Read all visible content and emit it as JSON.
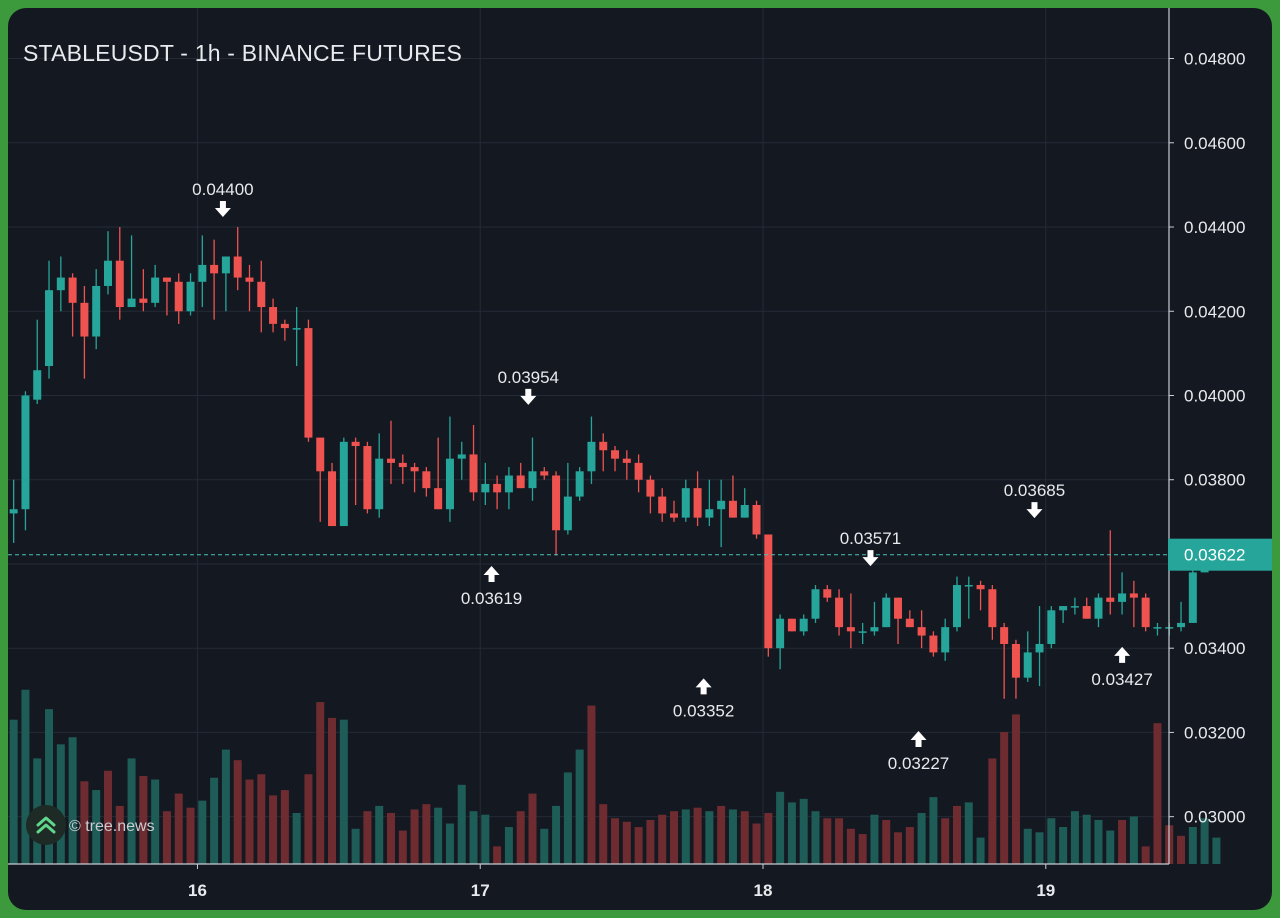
{
  "title": "STABLEUSDT - 1h - BINANCE FUTURES",
  "watermark": "© tree.news",
  "logo_icon": "double-chevron-up-icon",
  "colors": {
    "background": "#141821",
    "grid": "#252b36",
    "up": "#26a69a",
    "down": "#ef5350",
    "up_volume": "#1e5d57",
    "down_volume": "#6e2c31",
    "price_line": "#46c2b4",
    "frame": "#3c9a3c"
  },
  "chart_data": {
    "type": "candlestick",
    "interval": "1h",
    "x_ticks": [
      "16",
      "17",
      "18",
      "19"
    ],
    "y_ticks": [
      "0.04800",
      "0.04600",
      "0.04400",
      "0.04200",
      "0.04000",
      "0.03800",
      "0.03600",
      "0.03400",
      "0.03200",
      "0.03000"
    ],
    "ylim": [
      0.0289,
      0.0492
    ],
    "x_range": [
      15.33,
      19.8
    ],
    "grid": true,
    "last_price": "0.03622",
    "annotations": [
      {
        "label": "0.04400",
        "t": 16.09,
        "price": 0.044,
        "arrow": "down"
      },
      {
        "label": "0.03619",
        "t": 17.04,
        "price": 0.03619,
        "arrow": "up"
      },
      {
        "label": "0.03954",
        "t": 17.17,
        "price": 0.03954,
        "arrow": "down"
      },
      {
        "label": "0.03352",
        "t": 17.79,
        "price": 0.03352,
        "arrow": "up"
      },
      {
        "label": "0.03571",
        "t": 18.38,
        "price": 0.03571,
        "arrow": "down"
      },
      {
        "label": "0.03227",
        "t": 18.55,
        "price": 0.03227,
        "arrow": "up"
      },
      {
        "label": "0.03685",
        "t": 18.96,
        "price": 0.03685,
        "arrow": "down"
      },
      {
        "label": "0.03427",
        "t": 19.27,
        "price": 0.03427,
        "arrow": "up"
      }
    ],
    "start": 15.35,
    "step": 0.0417,
    "candles": [
      [
        0.0372,
        0.0373,
        0.0365,
        0.038
      ],
      [
        0.0373,
        0.04,
        0.0368,
        0.0401
      ],
      [
        0.0399,
        0.0406,
        0.0398,
        0.0418
      ],
      [
        0.0407,
        0.0425,
        0.0404,
        0.0432
      ],
      [
        0.0425,
        0.0428,
        0.042,
        0.0433
      ],
      [
        0.0428,
        0.0422,
        0.0414,
        0.0429
      ],
      [
        0.0422,
        0.0414,
        0.0404,
        0.0426
      ],
      [
        0.0414,
        0.0426,
        0.0411,
        0.043
      ],
      [
        0.0426,
        0.0432,
        0.0424,
        0.0439
      ],
      [
        0.0432,
        0.0421,
        0.0418,
        0.044
      ],
      [
        0.0421,
        0.0423,
        0.0421,
        0.0438
      ],
      [
        0.0423,
        0.0422,
        0.042,
        0.043
      ],
      [
        0.0422,
        0.0428,
        0.0421,
        0.0431
      ],
      [
        0.0428,
        0.0427,
        0.0419,
        0.0428
      ],
      [
        0.0427,
        0.042,
        0.0417,
        0.0429
      ],
      [
        0.042,
        0.0427,
        0.0419,
        0.0429
      ],
      [
        0.0427,
        0.0431,
        0.0421,
        0.0438
      ],
      [
        0.0431,
        0.0429,
        0.0418,
        0.0437
      ],
      [
        0.0429,
        0.0433,
        0.042,
        0.0433
      ],
      [
        0.0433,
        0.0428,
        0.0425,
        0.044
      ],
      [
        0.0428,
        0.0427,
        0.042,
        0.0431
      ],
      [
        0.0427,
        0.0421,
        0.0415,
        0.0432
      ],
      [
        0.0421,
        0.0417,
        0.0415,
        0.0423
      ],
      [
        0.0417,
        0.0416,
        0.0413,
        0.0418
      ],
      [
        0.0416,
        0.0416,
        0.0407,
        0.0421
      ],
      [
        0.0416,
        0.039,
        0.0389,
        0.0418
      ],
      [
        0.039,
        0.0382,
        0.037,
        0.039
      ],
      [
        0.0382,
        0.0369,
        0.0369,
        0.0384
      ],
      [
        0.0369,
        0.0389,
        0.0369,
        0.039
      ],
      [
        0.0389,
        0.0388,
        0.0374,
        0.039
      ],
      [
        0.0388,
        0.0373,
        0.0372,
        0.0389
      ],
      [
        0.0373,
        0.0385,
        0.0371,
        0.0391
      ],
      [
        0.0385,
        0.0384,
        0.0379,
        0.0394
      ],
      [
        0.0384,
        0.0383,
        0.0379,
        0.0386
      ],
      [
        0.0383,
        0.0382,
        0.0377,
        0.0384
      ],
      [
        0.0382,
        0.0378,
        0.0376,
        0.0383
      ],
      [
        0.0378,
        0.0373,
        0.0373,
        0.039
      ],
      [
        0.0373,
        0.0385,
        0.037,
        0.0395
      ],
      [
        0.0385,
        0.0386,
        0.038,
        0.0389
      ],
      [
        0.0386,
        0.0377,
        0.0375,
        0.0393
      ],
      [
        0.0377,
        0.0379,
        0.0374,
        0.0384
      ],
      [
        0.0379,
        0.0377,
        0.0373,
        0.0381
      ],
      [
        0.0377,
        0.0381,
        0.0373,
        0.0383
      ],
      [
        0.0381,
        0.0378,
        0.0378,
        0.0384
      ],
      [
        0.0378,
        0.0382,
        0.0375,
        0.039
      ],
      [
        0.0382,
        0.0381,
        0.038,
        0.0383
      ],
      [
        0.0381,
        0.0368,
        0.0362,
        0.0382
      ],
      [
        0.0368,
        0.0376,
        0.0367,
        0.0384
      ],
      [
        0.0376,
        0.0382,
        0.0375,
        0.0383
      ],
      [
        0.0382,
        0.0389,
        0.0379,
        0.0395
      ],
      [
        0.0389,
        0.0387,
        0.0382,
        0.0391
      ],
      [
        0.0387,
        0.0385,
        0.0382,
        0.0388
      ],
      [
        0.0385,
        0.0384,
        0.038,
        0.0387
      ],
      [
        0.0384,
        0.038,
        0.0377,
        0.0386
      ],
      [
        0.038,
        0.0376,
        0.0372,
        0.0381
      ],
      [
        0.0376,
        0.0372,
        0.037,
        0.0378
      ],
      [
        0.0372,
        0.0371,
        0.037,
        0.0375
      ],
      [
        0.0371,
        0.0378,
        0.037,
        0.038
      ],
      [
        0.0378,
        0.0371,
        0.0369,
        0.0382
      ],
      [
        0.0371,
        0.0373,
        0.0369,
        0.038
      ],
      [
        0.0373,
        0.0375,
        0.0364,
        0.038
      ],
      [
        0.0375,
        0.0371,
        0.0371,
        0.0381
      ],
      [
        0.0371,
        0.0374,
        0.0371,
        0.0378
      ],
      [
        0.0374,
        0.0367,
        0.0366,
        0.0375
      ],
      [
        0.0367,
        0.034,
        0.0338,
        0.0367
      ],
      [
        0.034,
        0.0347,
        0.0335,
        0.0348
      ],
      [
        0.0347,
        0.0344,
        0.0344,
        0.0347
      ],
      [
        0.0344,
        0.0347,
        0.0343,
        0.0348
      ],
      [
        0.0347,
        0.0354,
        0.0346,
        0.0355
      ],
      [
        0.0354,
        0.0352,
        0.0351,
        0.0355
      ],
      [
        0.0352,
        0.0345,
        0.0343,
        0.0354
      ],
      [
        0.0345,
        0.0344,
        0.034,
        0.0353
      ],
      [
        0.0344,
        0.0344,
        0.0341,
        0.0346
      ],
      [
        0.0344,
        0.0345,
        0.0343,
        0.0351
      ],
      [
        0.0345,
        0.0352,
        0.0345,
        0.0353
      ],
      [
        0.0352,
        0.0347,
        0.0341,
        0.0352
      ],
      [
        0.0347,
        0.0345,
        0.0345,
        0.0349
      ],
      [
        0.0345,
        0.0343,
        0.034,
        0.0349
      ],
      [
        0.0343,
        0.0339,
        0.0338,
        0.0344
      ],
      [
        0.0339,
        0.0345,
        0.0337,
        0.0347
      ],
      [
        0.0345,
        0.0355,
        0.0344,
        0.0357
      ],
      [
        0.0355,
        0.0355,
        0.0347,
        0.0357
      ],
      [
        0.0355,
        0.0354,
        0.0349,
        0.0356
      ],
      [
        0.0354,
        0.0345,
        0.0342,
        0.0355
      ],
      [
        0.0345,
        0.0341,
        0.0328,
        0.0346
      ],
      [
        0.0341,
        0.0333,
        0.0328,
        0.0342
      ],
      [
        0.0333,
        0.0339,
        0.0332,
        0.0344
      ],
      [
        0.0339,
        0.0341,
        0.0331,
        0.035
      ],
      [
        0.0341,
        0.0349,
        0.034,
        0.035
      ],
      [
        0.0349,
        0.035,
        0.0346,
        0.035
      ],
      [
        0.035,
        0.035,
        0.0348,
        0.0352
      ],
      [
        0.035,
        0.0347,
        0.0347,
        0.0352
      ],
      [
        0.0347,
        0.0352,
        0.0345,
        0.0353
      ],
      [
        0.0352,
        0.0351,
        0.0348,
        0.0368
      ],
      [
        0.0351,
        0.0353,
        0.0348,
        0.0358
      ],
      [
        0.0353,
        0.0352,
        0.0345,
        0.0356
      ],
      [
        0.0352,
        0.0345,
        0.0344,
        0.0353
      ],
      [
        0.0345,
        0.0345,
        0.0343,
        0.0346
      ],
      [
        0.0345,
        0.0345,
        0.0343,
        0.0346
      ],
      [
        0.0345,
        0.0346,
        0.0344,
        0.0351
      ],
      [
        0.0346,
        0.0358,
        0.0346,
        0.0362
      ],
      [
        0.0358,
        0.0362,
        0.0358,
        0.0364
      ]
    ],
    "volume_ylim": [
      0,
      1
    ],
    "volumes": [
      0.82,
      0.99,
      0.6,
      0.88,
      0.68,
      0.72,
      0.47,
      0.42,
      0.53,
      0.33,
      0.6,
      0.5,
      0.48,
      0.3,
      0.4,
      0.32,
      0.36,
      0.49,
      0.65,
      0.59,
      0.48,
      0.51,
      0.39,
      0.42,
      0.29,
      0.51,
      0.92,
      0.83,
      0.82,
      0.2,
      0.3,
      0.33,
      0.29,
      0.19,
      0.31,
      0.34,
      0.32,
      0.23,
      0.45,
      0.3,
      0.28,
      0.1,
      0.21,
      0.3,
      0.4,
      0.2,
      0.33,
      0.52,
      0.65,
      0.9,
      0.34,
      0.26,
      0.24,
      0.21,
      0.25,
      0.28,
      0.3,
      0.31,
      0.32,
      0.3,
      0.33,
      0.31,
      0.3,
      0.23,
      0.29,
      0.41,
      0.35,
      0.37,
      0.3,
      0.26,
      0.26,
      0.2,
      0.17,
      0.28,
      0.25,
      0.18,
      0.21,
      0.29,
      0.38,
      0.26,
      0.33,
      0.35,
      0.15,
      0.6,
      0.75,
      0.85,
      0.2,
      0.18,
      0.26,
      0.21,
      0.3,
      0.28,
      0.25,
      0.19,
      0.25,
      0.27,
      0.1,
      0.8,
      0.22,
      0.16,
      0.21,
      0.26,
      0.15
    ],
    "volume_colors": [
      "up",
      "up",
      "up",
      "up",
      "up",
      "up",
      "down",
      "up",
      "down",
      "down",
      "up",
      "down",
      "up",
      "down",
      "down",
      "down",
      "up",
      "up",
      "up",
      "down",
      "down",
      "down",
      "down",
      "down",
      "up",
      "down",
      "down",
      "down",
      "up",
      "up",
      "down",
      "up",
      "down",
      "down",
      "down",
      "down",
      "up",
      "up",
      "up",
      "up",
      "up",
      "down",
      "up",
      "down",
      "down",
      "up",
      "up",
      "up",
      "up",
      "down",
      "down",
      "down",
      "down",
      "down",
      "down",
      "down",
      "down",
      "up",
      "down",
      "up",
      "down",
      "up",
      "down",
      "down",
      "down",
      "up",
      "up",
      "up",
      "up",
      "down",
      "down",
      "down",
      "down",
      "up",
      "down",
      "down",
      "down",
      "up",
      "up",
      "down",
      "down",
      "up",
      "up",
      "down",
      "down",
      "down",
      "up",
      "up",
      "up",
      "up",
      "up",
      "up",
      "up",
      "up",
      "down",
      "up",
      "down",
      "down",
      "down",
      "down",
      "up",
      "up",
      "up"
    ]
  }
}
